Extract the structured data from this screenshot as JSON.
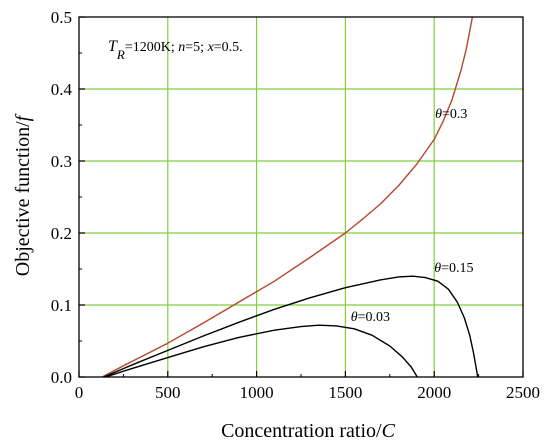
{
  "chart_data": {
    "type": "line",
    "xlabel": {
      "main": "Concentration ratio/",
      "var": "C"
    },
    "ylabel": {
      "main": "Objective function/",
      "var": "f"
    },
    "xlim": [
      0,
      2500
    ],
    "ylim": [
      0,
      0.5
    ],
    "x_ticks": [
      "0",
      "500",
      "1000",
      "1500",
      "2000",
      "2500"
    ],
    "y_ticks": [
      "0.0",
      "0.1",
      "0.2",
      "0.3",
      "0.4",
      "0.5"
    ],
    "grid": true,
    "grid_color": "#7fd13b",
    "annotation": {
      "t": "T",
      "r": "R",
      "tr_value": "=1200K; ",
      "n": "n",
      "n_value": "=5; ",
      "x": "x",
      "x_value": "=0.5."
    },
    "series": [
      {
        "label_symbol": "θ",
        "label_value": "=0.3",
        "label_at": [
          2005,
          0.36
        ],
        "color": "#b5472a",
        "points": [
          [
            130,
            0.0
          ],
          [
            300,
            0.022
          ],
          [
            500,
            0.047
          ],
          [
            700,
            0.075
          ],
          [
            900,
            0.104
          ],
          [
            1100,
            0.133
          ],
          [
            1300,
            0.166
          ],
          [
            1500,
            0.2
          ],
          [
            1600,
            0.22
          ],
          [
            1700,
            0.241
          ],
          [
            1800,
            0.266
          ],
          [
            1900,
            0.295
          ],
          [
            2000,
            0.33
          ],
          [
            2050,
            0.355
          ],
          [
            2100,
            0.385
          ],
          [
            2150,
            0.425
          ],
          [
            2180,
            0.455
          ],
          [
            2200,
            0.48
          ],
          [
            2215,
            0.5
          ]
        ]
      },
      {
        "label_symbol": "θ",
        "label_value": "=0.15",
        "label_at": [
          2000,
          0.146
        ],
        "color": "#000000",
        "points": [
          [
            140,
            0.0
          ],
          [
            300,
            0.017
          ],
          [
            500,
            0.037
          ],
          [
            700,
            0.057
          ],
          [
            900,
            0.076
          ],
          [
            1100,
            0.094
          ],
          [
            1300,
            0.11
          ],
          [
            1500,
            0.124
          ],
          [
            1700,
            0.135
          ],
          [
            1800,
            0.139
          ],
          [
            1880,
            0.14
          ],
          [
            1950,
            0.138
          ],
          [
            2020,
            0.133
          ],
          [
            2080,
            0.122
          ],
          [
            2130,
            0.104
          ],
          [
            2170,
            0.082
          ],
          [
            2200,
            0.058
          ],
          [
            2220,
            0.035
          ],
          [
            2235,
            0.015
          ],
          [
            2245,
            0.0
          ]
        ]
      },
      {
        "label_symbol": "θ",
        "label_value": "=0.03",
        "label_at": [
          1530,
          0.078
        ],
        "color": "#000000",
        "points": [
          [
            150,
            0.0
          ],
          [
            300,
            0.012
          ],
          [
            500,
            0.027
          ],
          [
            700,
            0.042
          ],
          [
            900,
            0.055
          ],
          [
            1100,
            0.065
          ],
          [
            1250,
            0.07
          ],
          [
            1350,
            0.072
          ],
          [
            1450,
            0.071
          ],
          [
            1550,
            0.067
          ],
          [
            1650,
            0.058
          ],
          [
            1750,
            0.043
          ],
          [
            1820,
            0.028
          ],
          [
            1870,
            0.014
          ],
          [
            1905,
            0.0
          ]
        ]
      }
    ]
  }
}
